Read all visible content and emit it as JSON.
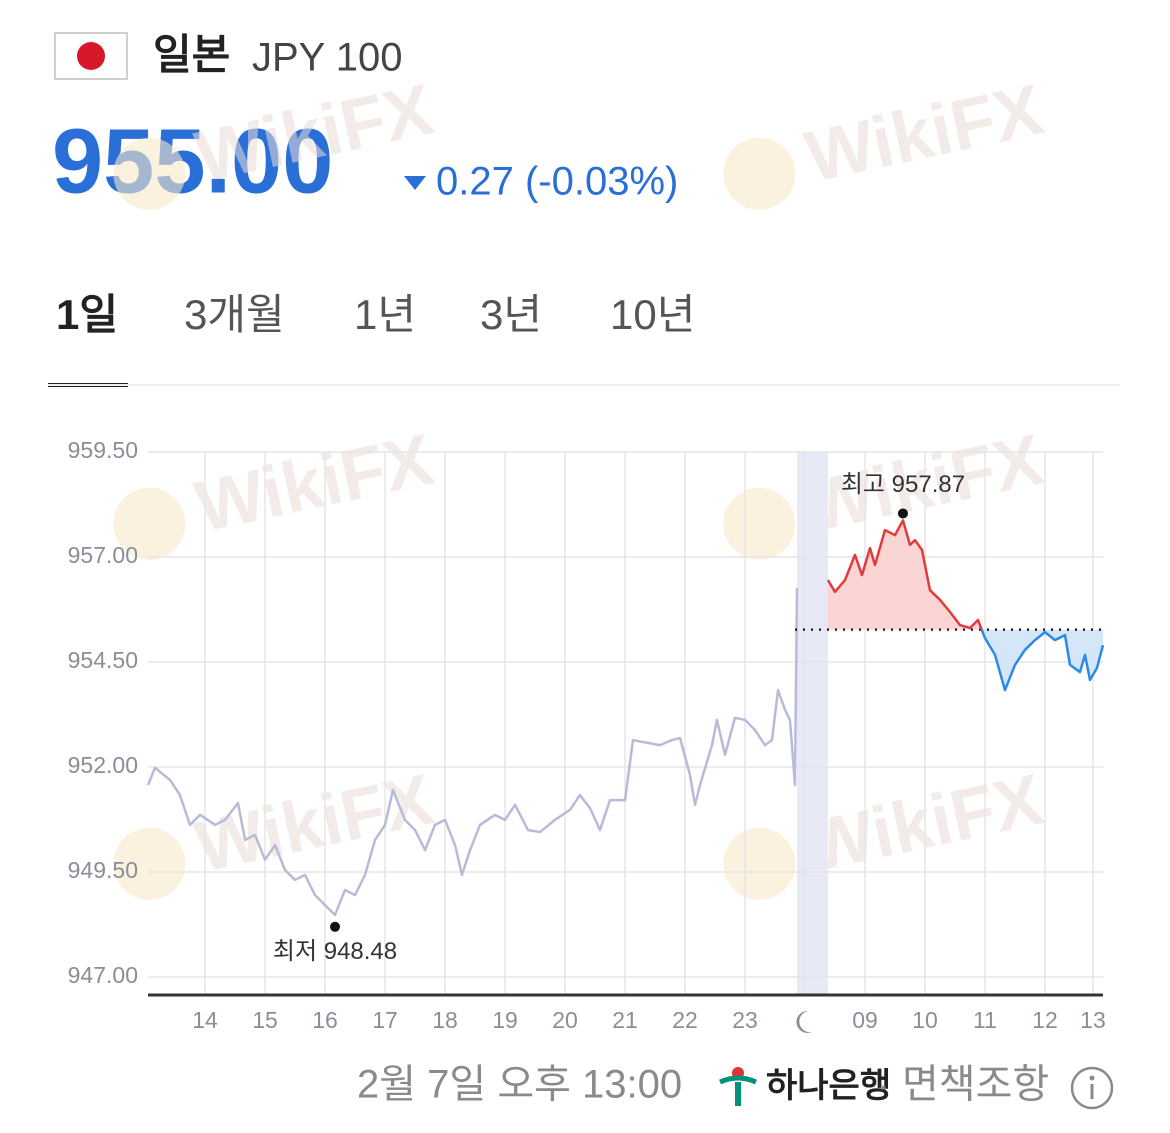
{
  "header": {
    "country": "일본",
    "currency": "JPY 100",
    "price": "955.00",
    "change": "0.27 (-0.03%)"
  },
  "tabs": [
    "1일",
    "3개월",
    "1년",
    "3년",
    "10년"
  ],
  "active_tab": 0,
  "watermark": "WikiFX",
  "chart_data": {
    "type": "line",
    "xlim": [
      -0.95,
      14.967
    ],
    "ylim": [
      946.57,
      959.5
    ],
    "yticks": [
      {
        "value": 959.5,
        "label": "959.50"
      },
      {
        "value": 957,
        "label": "957.00"
      },
      {
        "value": 954.5,
        "label": "954.50"
      },
      {
        "value": 952,
        "label": "952.00"
      },
      {
        "value": 949.5,
        "label": "949.50"
      },
      {
        "value": 947,
        "label": "947.00"
      }
    ],
    "xticks": [
      {
        "value": 0,
        "label": "14"
      },
      {
        "value": 1,
        "label": "15"
      },
      {
        "value": 2,
        "label": "16"
      },
      {
        "value": 3,
        "label": "17"
      },
      {
        "value": 4,
        "label": "18"
      },
      {
        "value": 5,
        "label": "19"
      },
      {
        "value": 6,
        "label": "20"
      },
      {
        "value": 7,
        "label": "21"
      },
      {
        "value": 8,
        "label": "22"
      },
      {
        "value": 9,
        "label": "23"
      },
      {
        "value": 11,
        "label": "09"
      },
      {
        "value": 12,
        "label": "10"
      },
      {
        "value": 13,
        "label": "11"
      },
      {
        "value": 14,
        "label": "12"
      },
      {
        "value": 14.8,
        "label": "13"
      }
    ],
    "grid": true,
    "baseline": 955.27,
    "series": [
      {
        "color": "#b8bbd8",
        "x": [
          -0.95,
          -0.833,
          -0.583,
          -0.417,
          -0.25,
          -0.083,
          0.167,
          0.333,
          0.55,
          0.667,
          0.833,
          1.0,
          1.167,
          1.333,
          1.5,
          1.667,
          1.833,
          2.0,
          2.167,
          2.333,
          2.5,
          2.667,
          2.833,
          3.0,
          3.133,
          3.333,
          3.5,
          3.667,
          3.833,
          4.0,
          4.167,
          4.283,
          4.417,
          4.583,
          4.833,
          5.0,
          5.167,
          5.383,
          5.583,
          5.833,
          6.083,
          6.25,
          6.417,
          6.583,
          6.75,
          7.0,
          7.133,
          7.583,
          7.783,
          7.917,
          8.083,
          8.167,
          8.25,
          8.45,
          8.533,
          8.667,
          8.833,
          9.0,
          9.167,
          9.333,
          9.45,
          9.55,
          9.667,
          9.75,
          9.833,
          9.867
        ],
        "values": [
          951.57,
          951.98,
          951.69,
          951.33,
          950.62,
          950.86,
          950.62,
          950.74,
          951.14,
          950.26,
          950.38,
          949.79,
          950.14,
          949.55,
          949.31,
          949.43,
          948.95,
          948.71,
          948.48,
          949.07,
          948.95,
          949.43,
          950.26,
          950.62,
          951.45,
          950.74,
          950.5,
          950.02,
          950.62,
          950.74,
          950.14,
          949.43,
          950.02,
          950.62,
          950.86,
          950.74,
          951.1,
          950.5,
          950.45,
          950.74,
          950.98,
          951.33,
          951.02,
          950.5,
          951.21,
          951.21,
          952.64,
          952.52,
          952.64,
          952.69,
          951.81,
          951.1,
          951.57,
          952.52,
          953.12,
          952.29,
          953.17,
          953.12,
          952.88,
          952.52,
          952.64,
          953.83,
          953.36,
          953.12,
          951.57,
          956.26
        ]
      },
      {
        "color_up": "#e23b3b",
        "color_down": "#2b8ae8",
        "fill_up": "#fbd4d4",
        "fill_down": "#d4e6f8",
        "x": [
          10.383,
          10.5,
          10.667,
          10.833,
          10.95,
          11.083,
          11.167,
          11.333,
          11.5,
          11.633,
          11.75,
          11.833,
          11.95,
          12.083,
          12.25,
          12.417,
          12.583,
          12.75,
          12.883,
          13.0,
          13.167,
          13.333,
          13.5,
          13.667,
          13.833,
          14.0,
          14.167,
          14.333,
          14.417,
          14.583,
          14.667,
          14.75,
          14.867,
          14.967
        ],
        "values": [
          956.45,
          956.17,
          956.45,
          957.05,
          956.57,
          957.21,
          956.81,
          957.64,
          957.52,
          957.87,
          957.29,
          957.4,
          957.17,
          956.21,
          955.98,
          955.69,
          955.38,
          955.31,
          955.5,
          955.07,
          954.67,
          953.83,
          954.43,
          954.79,
          955.02,
          955.21,
          955.02,
          955.14,
          954.43,
          954.26,
          954.67,
          954.07,
          954.36,
          954.9
        ]
      }
    ],
    "annotations": [
      {
        "label": "최고 957.87",
        "x": 11.633,
        "value": 957.87
      },
      {
        "label": "최저 948.48",
        "x": 2.167,
        "value": 948.48
      }
    ]
  },
  "footer": {
    "timestamp": "2월 7일 오후 13:00",
    "bank": "하나은행",
    "separator": "·",
    "disclaimer": "면책조항"
  }
}
